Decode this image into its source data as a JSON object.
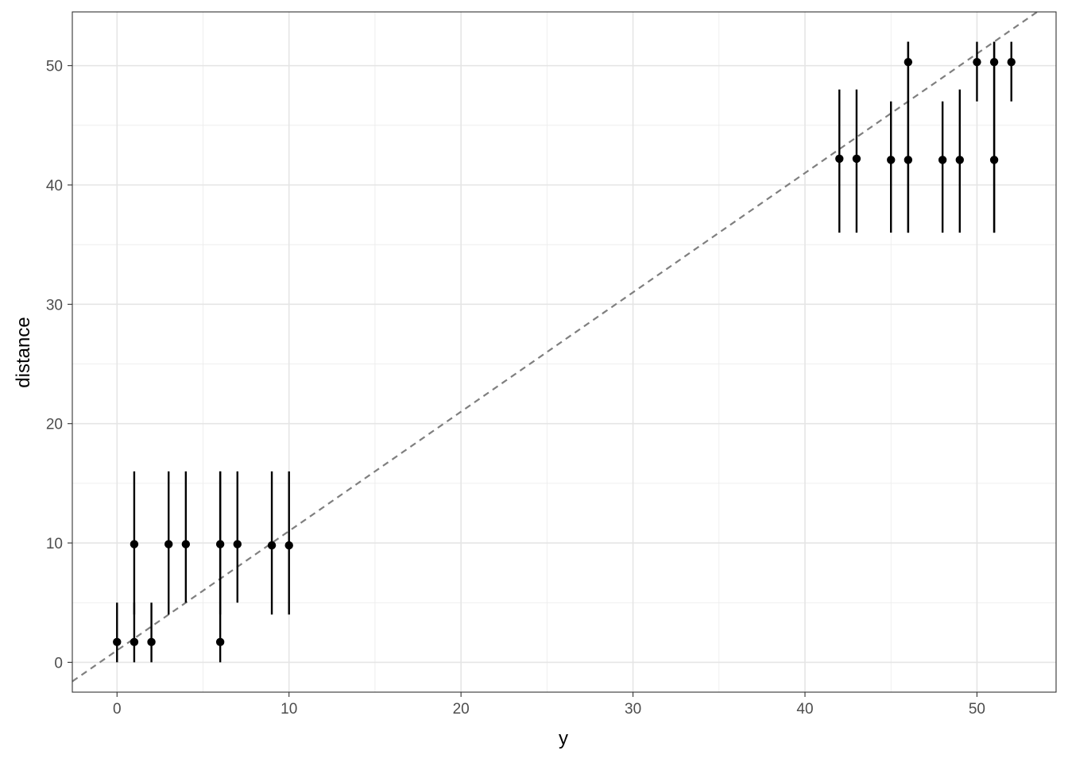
{
  "chart_data": {
    "type": "scatter",
    "title": "",
    "xlabel": "y",
    "ylabel": "distance",
    "xlim": [
      -2.6,
      54.6
    ],
    "ylim": [
      -2.5,
      54.5
    ],
    "x_ticks": [
      0,
      10,
      20,
      30,
      40,
      50
    ],
    "y_ticks": [
      0,
      10,
      20,
      30,
      40,
      50
    ],
    "grid": true,
    "reference_line": {
      "style": "dashed",
      "color": "#7f7f7f",
      "intercept": 1,
      "slope": 1
    },
    "series": [
      {
        "marker_color": "#000000",
        "points": [
          {
            "x": 0,
            "y": 1.7,
            "ymin": 0,
            "ymax": 5
          },
          {
            "x": 1,
            "y": 1.7,
            "ymin": 0,
            "ymax": 5
          },
          {
            "x": 1,
            "y": 9.9,
            "ymin": 4,
            "ymax": 16
          },
          {
            "x": 2,
            "y": 1.7,
            "ymin": 0,
            "ymax": 5
          },
          {
            "x": 3,
            "y": 9.9,
            "ymin": 4,
            "ymax": 16
          },
          {
            "x": 4,
            "y": 9.9,
            "ymin": 5,
            "ymax": 16
          },
          {
            "x": 6,
            "y": 1.7,
            "ymin": 0,
            "ymax": 16
          },
          {
            "x": 6,
            "y": 9.9,
            "ymin": 4,
            "ymax": 16
          },
          {
            "x": 7,
            "y": 9.9,
            "ymin": 5,
            "ymax": 16
          },
          {
            "x": 9,
            "y": 9.8,
            "ymin": 4,
            "ymax": 16
          },
          {
            "x": 10,
            "y": 9.8,
            "ymin": 4,
            "ymax": 16
          },
          {
            "x": 42,
            "y": 42.2,
            "ymin": 36,
            "ymax": 48
          },
          {
            "x": 43,
            "y": 42.2,
            "ymin": 36,
            "ymax": 48
          },
          {
            "x": 45,
            "y": 42.1,
            "ymin": 36,
            "ymax": 47
          },
          {
            "x": 46,
            "y": 42.1,
            "ymin": 36,
            "ymax": 52
          },
          {
            "x": 46,
            "y": 50.3,
            "ymin": 36,
            "ymax": 52
          },
          {
            "x": 48,
            "y": 42.1,
            "ymin": 36,
            "ymax": 47
          },
          {
            "x": 49,
            "y": 42.1,
            "ymin": 36,
            "ymax": 48
          },
          {
            "x": 50,
            "y": 50.3,
            "ymin": 47,
            "ymax": 52
          },
          {
            "x": 51,
            "y": 42.1,
            "ymin": 36,
            "ymax": 52
          },
          {
            "x": 51,
            "y": 50.3,
            "ymin": 36,
            "ymax": 52
          },
          {
            "x": 52,
            "y": 50.3,
            "ymin": 47,
            "ymax": 52
          }
        ]
      }
    ]
  }
}
